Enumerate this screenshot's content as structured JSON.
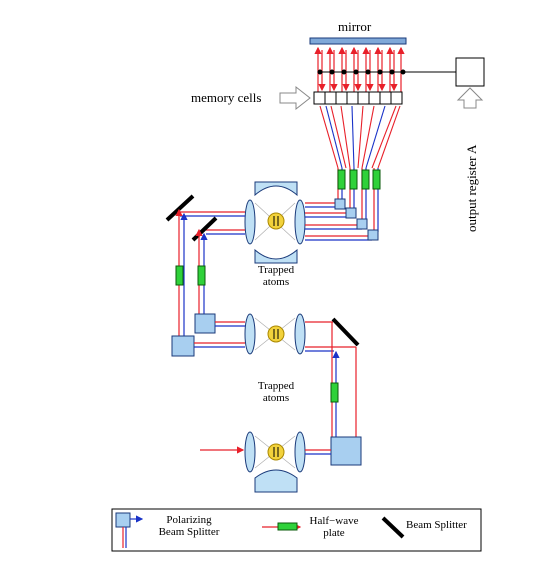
{
  "labels": {
    "mirror": "mirror",
    "memory_cells": "memory cells",
    "output_register": "output register A",
    "trapped_atoms_1_line1": "Trapped",
    "trapped_atoms_1_line2": "atoms",
    "trapped_atoms_2_line1": "Trapped",
    "trapped_atoms_2_line2": "atoms"
  },
  "legend": {
    "pbs_line1": "Polarizing",
    "pbs_line2": "Beam Splitter",
    "hwp_line1": "Half−wave",
    "hwp_line2": "plate",
    "bs": "Beam Splitter"
  },
  "colors": {
    "beam_red": "#e8202a",
    "beam_blue": "#1a33c8",
    "pbs_fill": "#a8cff0",
    "lens_fill": "#bfe0f5",
    "atom_fill": "#f2d23c",
    "halfwave_fill": "#2fd13a",
    "mirror_fill": "#7fa8d8"
  }
}
